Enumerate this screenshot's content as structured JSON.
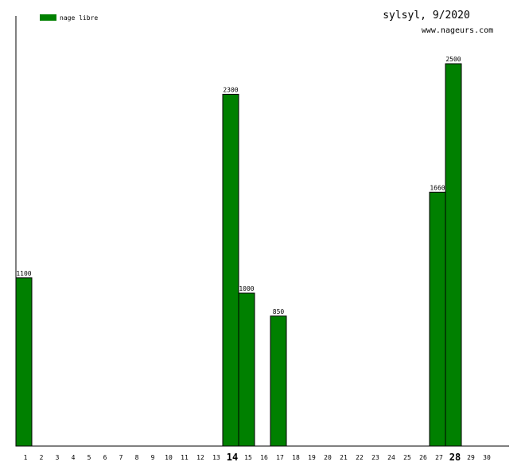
{
  "chart_data": {
    "type": "bar",
    "title": "sylsyl, 9/2020",
    "subtitle": "www.nageurs.com",
    "series": [
      {
        "name": "nage libre",
        "color": "#008000",
        "points": [
          {
            "day": 1,
            "value": 1100,
            "label": "1100"
          },
          {
            "day": 14,
            "value": 2300,
            "label": "2300"
          },
          {
            "day": 15,
            "value": 1000,
            "label": "1000"
          },
          {
            "day": 17,
            "value": 850,
            "label": "850"
          },
          {
            "day": 27,
            "value": 1660,
            "label": "1660"
          },
          {
            "day": 28,
            "value": 2500,
            "label": "2500"
          }
        ]
      }
    ],
    "categories": [
      "1",
      "2",
      "3",
      "4",
      "5",
      "6",
      "7",
      "8",
      "9",
      "10",
      "11",
      "12",
      "13",
      "14",
      "15",
      "16",
      "17",
      "18",
      "19",
      "20",
      "21",
      "22",
      "23",
      "24",
      "25",
      "26",
      "27",
      "28",
      "29",
      "30"
    ],
    "highlighted_categories": [
      "14",
      "28"
    ],
    "ylim": [
      0,
      2500
    ],
    "grid": false,
    "legend_position": "top-left",
    "colors": {
      "bar": "#008000",
      "axis": "#000000",
      "text": "#000000",
      "background": "#ffffff"
    }
  }
}
